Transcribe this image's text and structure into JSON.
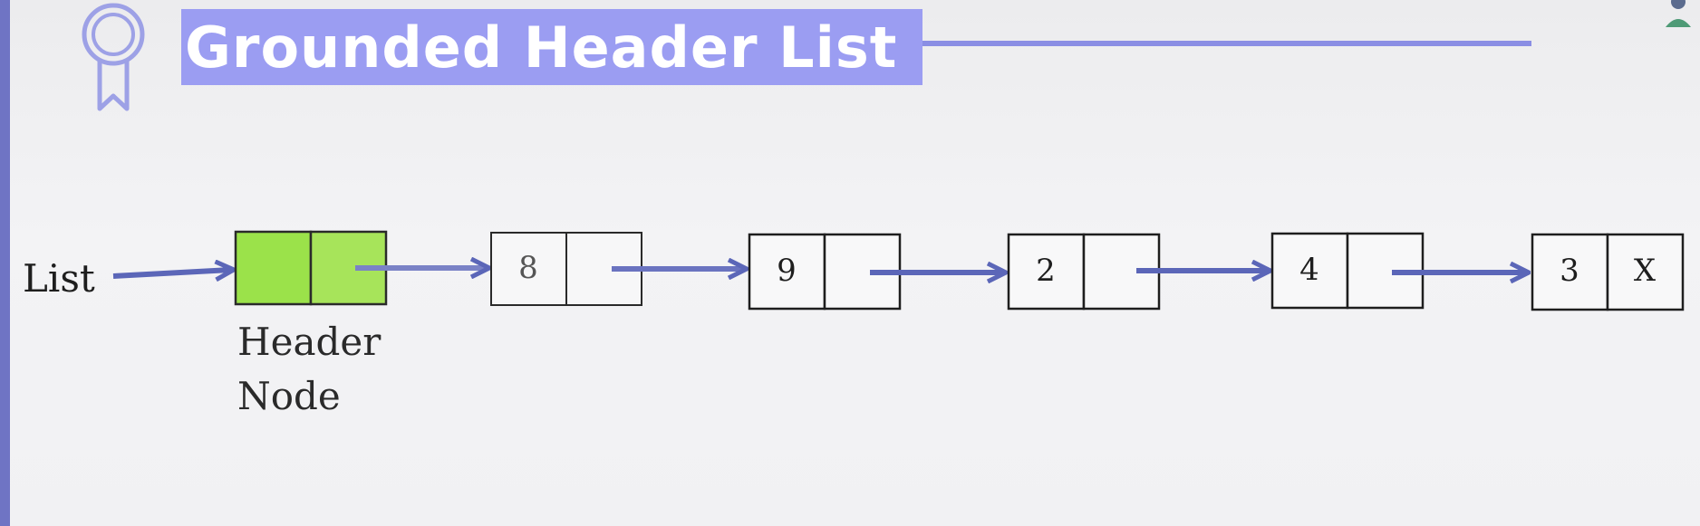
{
  "slide": {
    "title": "Grounded Header List"
  },
  "diagram": {
    "list_label": "List",
    "header_label_line1": "Header",
    "header_label_line2": "Node",
    "nodes": [
      {
        "value": "8",
        "next": ""
      },
      {
        "value": "9",
        "next": ""
      },
      {
        "value": "2",
        "next": ""
      },
      {
        "value": "4",
        "next": ""
      },
      {
        "value": "3",
        "next": "X"
      }
    ],
    "colors": {
      "header_fill": "#9be24a",
      "arrow": "#5b66b8",
      "title_bg": "#9b9df2"
    }
  },
  "icons": {
    "top_left": "award-badge-icon",
    "top_right": "user-avatar-icon"
  }
}
